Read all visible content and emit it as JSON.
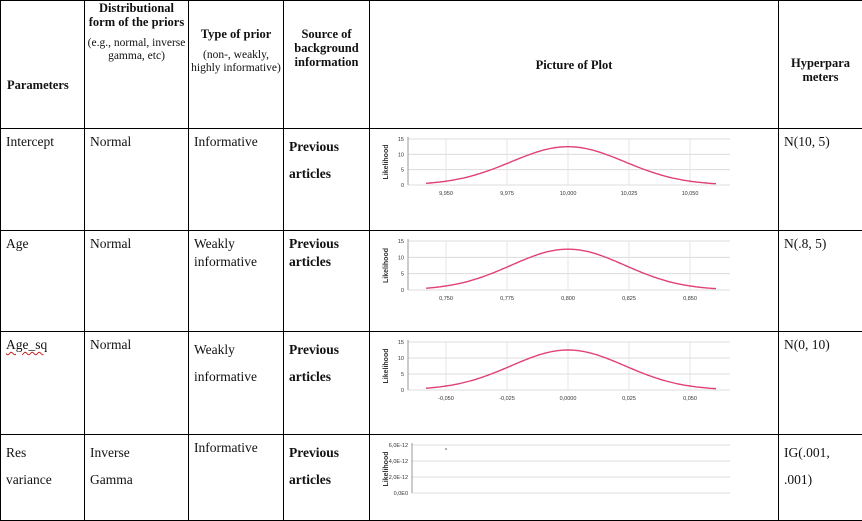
{
  "headers": {
    "parameters": "Parameters",
    "distribution_title": "Distributional form of the priors",
    "distribution_sub_a": "(e.g., normal, inverse",
    "distribution_sub_b": "gamma, etc)",
    "type_title": "Type of prior",
    "type_sub": "(non-, weakly, highly informative)",
    "source_title": "Source of background information",
    "picture": "Picture of Plot",
    "hyper_a": "Hyperpara",
    "hyper_b": "meters"
  },
  "rows": [
    {
      "parameter": "Intercept",
      "distribution": "Normal",
      "type": "Informative",
      "source_a": "Previous",
      "source_b": "articles",
      "hyper": "N(10, 5)"
    },
    {
      "parameter": "Age",
      "distribution": "Normal",
      "type": "Weakly informative",
      "source_a": "Previous",
      "source_b": "articles",
      "hyper": "N(.8, 5)"
    },
    {
      "parameter": "Age_sq",
      "distribution": "Normal",
      "type_a": "Weakly",
      "type_b": "informative",
      "source_a": "Previous",
      "source_b": "articles",
      "hyper": "N(0, 10)"
    },
    {
      "parameter": "Res",
      "parameter_b": "variance",
      "distribution": "Inverse",
      "distribution_b": "Gamma",
      "type": "Informative",
      "source_a": "Previous",
      "source_b": "articles",
      "hyper_a": "IG(.001,",
      "hyper_b": ".001)"
    }
  ],
  "curve_color": "#e0407a",
  "chart_data": [
    {
      "type": "line",
      "ylabel": "Likelihood",
      "x_ticks": [
        "9,950",
        "9,975",
        "10,000",
        "10,025",
        "10,050"
      ],
      "y_ticks": [
        "0",
        "5",
        "10",
        "15"
      ],
      "ylim": [
        0,
        15
      ],
      "peak_x": "10,000",
      "peak_y": 12.5
    },
    {
      "type": "line",
      "ylabel": "Likelihood",
      "x_ticks": [
        "0,750",
        "0,775",
        "0,800",
        "0,825",
        "0,850"
      ],
      "y_ticks": [
        "0",
        "5",
        "10",
        "15"
      ],
      "ylim": [
        0,
        15
      ],
      "peak_x": "0,800",
      "peak_y": 12.5
    },
    {
      "type": "line",
      "ylabel": "Likelihood",
      "x_ticks": [
        "-0,050",
        "-0,025",
        "0,0000",
        "0,025",
        "0,050"
      ],
      "y_ticks": [
        "0",
        "5",
        "10",
        "15"
      ],
      "ylim": [
        0,
        15
      ],
      "peak_x": "0,0000",
      "peak_y": 12.5
    },
    {
      "type": "line",
      "ylabel": "Likelihood",
      "x_ticks": [],
      "y_ticks": [
        "0,0E0",
        "2,0E-12",
        "4,0E-12",
        "6,0E-12"
      ],
      "ylim": [
        0,
        6e-12
      ]
    }
  ]
}
